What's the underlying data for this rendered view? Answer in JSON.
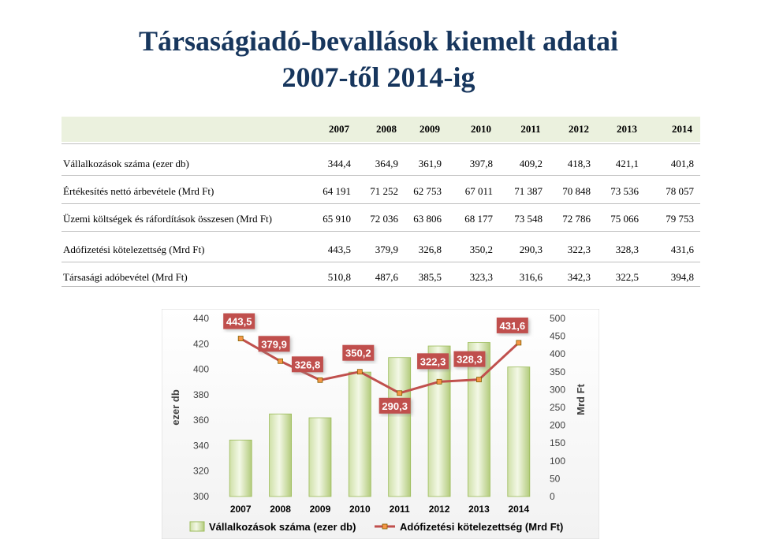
{
  "title_line1": "Társaságiadó-bevallások kiemelt adatai",
  "title_line2": "2007-től 2014-ig",
  "table": {
    "years": [
      "2007",
      "2008",
      "2009",
      "2010",
      "2011",
      "2012",
      "2013",
      "2014"
    ],
    "rows": [
      {
        "label": "Vállalkozások száma (ezer db)",
        "values": [
          "344,4",
          "364,9",
          "361,9",
          "397,8",
          "409,2",
          "418,3",
          "421,1",
          "401,8"
        ]
      },
      {
        "label": "Értékesítés nettó árbevétele (Mrd Ft)",
        "values": [
          "64 191",
          "71 252",
          "62 753",
          "67 011",
          "71 387",
          "70 848",
          "73 536",
          "78 057"
        ]
      },
      {
        "label": "Üzemi költségek és ráfordítások összesen (Mrd Ft)",
        "values": [
          "65 910",
          "72 036",
          "63 806",
          "68 177",
          "73 548",
          "72 786",
          "75 066",
          "79 753"
        ]
      },
      {
        "label": "Adófizetési kötelezettség (Mrd Ft)",
        "values": [
          "443,5",
          "379,9",
          "326,8",
          "350,2",
          "290,3",
          "322,3",
          "328,3",
          "431,6"
        ]
      },
      {
        "label": "Társasági adóbevétel (Mrd Ft)",
        "values": [
          "510,8",
          "487,6",
          "385,5",
          "323,3",
          "316,6",
          "342,3",
          "322,5",
          "394,8"
        ]
      }
    ]
  },
  "chart_data": {
    "type": "bar",
    "categories": [
      "2007",
      "2008",
      "2009",
      "2010",
      "2011",
      "2012",
      "2013",
      "2014"
    ],
    "series": [
      {
        "name": "Vállalkozások száma (ezer db)",
        "type": "bar",
        "axis": "left",
        "values": [
          344.4,
          364.9,
          361.9,
          397.8,
          409.2,
          418.3,
          421.1,
          401.8
        ],
        "color": "#9bbb59"
      },
      {
        "name": "Adófizetési kötelezettség (Mrd Ft)",
        "type": "line",
        "axis": "right",
        "values": [
          443.5,
          379.9,
          326.8,
          350.2,
          290.3,
          322.3,
          328.3,
          431.6
        ],
        "color": "#c0504d",
        "data_labels": [
          "443,5",
          "379,9",
          "326,8",
          "350,2",
          "290,3",
          "322,3",
          "328,3",
          "431,6"
        ]
      }
    ],
    "ylabel": "ezer db",
    "y2label": "Mrd Ft",
    "ylim": [
      300,
      440
    ],
    "y2lim": [
      0,
      500
    ],
    "yticks": [
      "440",
      "420",
      "400",
      "380",
      "360",
      "340",
      "320",
      "300"
    ],
    "y2ticks": [
      "500",
      "450",
      "400",
      "350",
      "300",
      "250",
      "200",
      "150",
      "100",
      "50",
      "0"
    ],
    "legend_position": "bottom",
    "grid": false
  }
}
